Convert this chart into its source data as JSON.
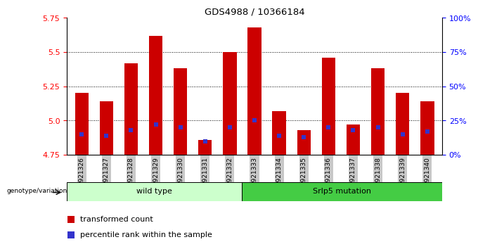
{
  "title": "GDS4988 / 10366184",
  "samples": [
    "GSM921326",
    "GSM921327",
    "GSM921328",
    "GSM921329",
    "GSM921330",
    "GSM921331",
    "GSM921332",
    "GSM921333",
    "GSM921334",
    "GSM921335",
    "GSM921336",
    "GSM921337",
    "GSM921338",
    "GSM921339",
    "GSM921340"
  ],
  "transformed_counts": [
    5.2,
    5.14,
    5.42,
    5.62,
    5.38,
    4.86,
    5.5,
    5.68,
    5.07,
    4.93,
    5.46,
    4.97,
    5.38,
    5.2,
    5.14
  ],
  "percentile_ranks": [
    15,
    14,
    18,
    22,
    20,
    10,
    20,
    25,
    14,
    13,
    20,
    18,
    20,
    15,
    17
  ],
  "ymin": 4.75,
  "ymax": 5.75,
  "yticks": [
    4.75,
    5.0,
    5.25,
    5.5,
    5.75
  ],
  "right_yticks": [
    0,
    25,
    50,
    75,
    100
  ],
  "right_yticklabels": [
    "0%",
    "25%",
    "50%",
    "75%",
    "100%"
  ],
  "bar_color": "#CC0000",
  "blue_color": "#3333CC",
  "wild_type_label": "wild type",
  "mutation_label": "Srlp5 mutation",
  "genotype_label": "genotype/variation",
  "legend_red": "transformed count",
  "legend_blue": "percentile rank within the sample",
  "bg_color_wt": "#ccffcc",
  "bg_color_mut": "#44cc44",
  "tick_bg_color": "#c8c8c8",
  "bar_bottom": 4.75,
  "n_wild": 7,
  "n_mut": 8
}
